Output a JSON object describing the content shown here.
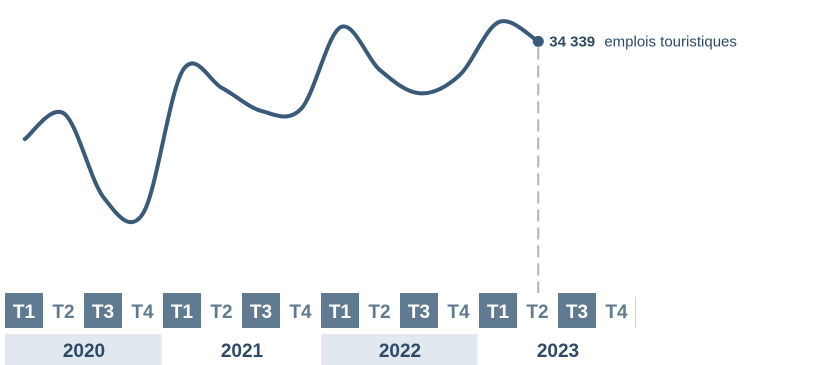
{
  "chart_data": {
    "type": "line",
    "series": [
      {
        "values": [
          30500,
          31500,
          28200,
          27600,
          33200,
          32500,
          31600,
          31700,
          34900,
          33200,
          32300,
          33000,
          35100,
          34339
        ]
      }
    ],
    "x": [
      "T1 2020",
      "T2 2020",
      "T3 2020",
      "T4 2020",
      "T1 2021",
      "T2 2021",
      "T3 2021",
      "T4 2021",
      "T1 2022",
      "T2 2022",
      "T3 2022",
      "T4 2022",
      "T1 2023",
      "T2 2023"
    ],
    "quarters": [
      "T1",
      "T2",
      "T3",
      "T4"
    ],
    "years": [
      "2020",
      "2021",
      "2022",
      "2023"
    ],
    "annotation": {
      "value": "34 339",
      "text": "emplois touristiques"
    },
    "colors": {
      "line": "#3a5a7a",
      "dark_cell": "#5f7a91",
      "year_band": "#e1e8ef",
      "text": "#2e4a66",
      "dashed": "#b4b4b4"
    }
  }
}
